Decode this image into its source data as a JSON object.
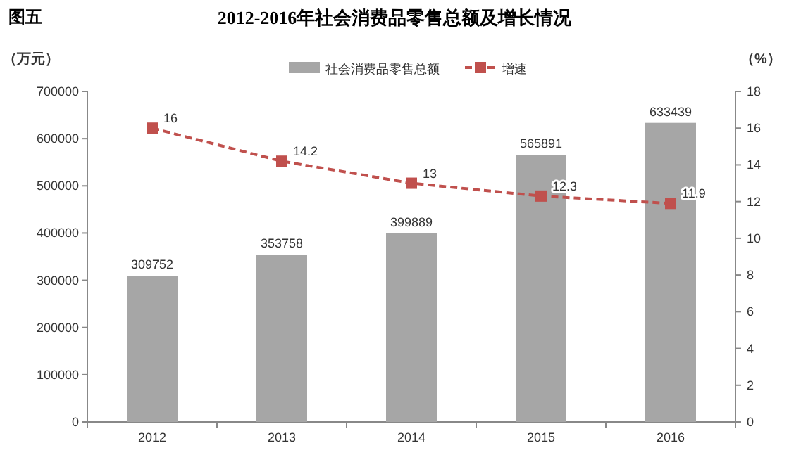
{
  "chart_data": {
    "type": "bar",
    "title": "2012-2016年社会消费品零售总额及增长情况",
    "annotations": [
      "图五"
    ],
    "ylabel": "（万元）",
    "y2label": "（%）",
    "categories": [
      "2012",
      "2013",
      "2014",
      "2015",
      "2016"
    ],
    "series": [
      {
        "name": "社会消费品零售总额",
        "color": "#a6a6a6",
        "values": [
          309752,
          353758,
          399889,
          565891,
          633439
        ]
      },
      {
        "name": "增速",
        "type": "line",
        "axis": "y2",
        "color": "#c0504d",
        "marker": "square",
        "line_style": "dashed",
        "values": [
          16,
          14.2,
          13,
          12.3,
          11.9
        ]
      }
    ],
    "ylim": [
      0,
      700000
    ],
    "yticks": [
      0,
      100000,
      200000,
      300000,
      400000,
      500000,
      600000,
      700000
    ],
    "y2lim": [
      0,
      18
    ],
    "y2ticks": [
      0,
      2,
      4,
      6,
      8,
      10,
      12,
      14,
      16,
      18
    ],
    "data_labels": true,
    "legend": "top"
  }
}
